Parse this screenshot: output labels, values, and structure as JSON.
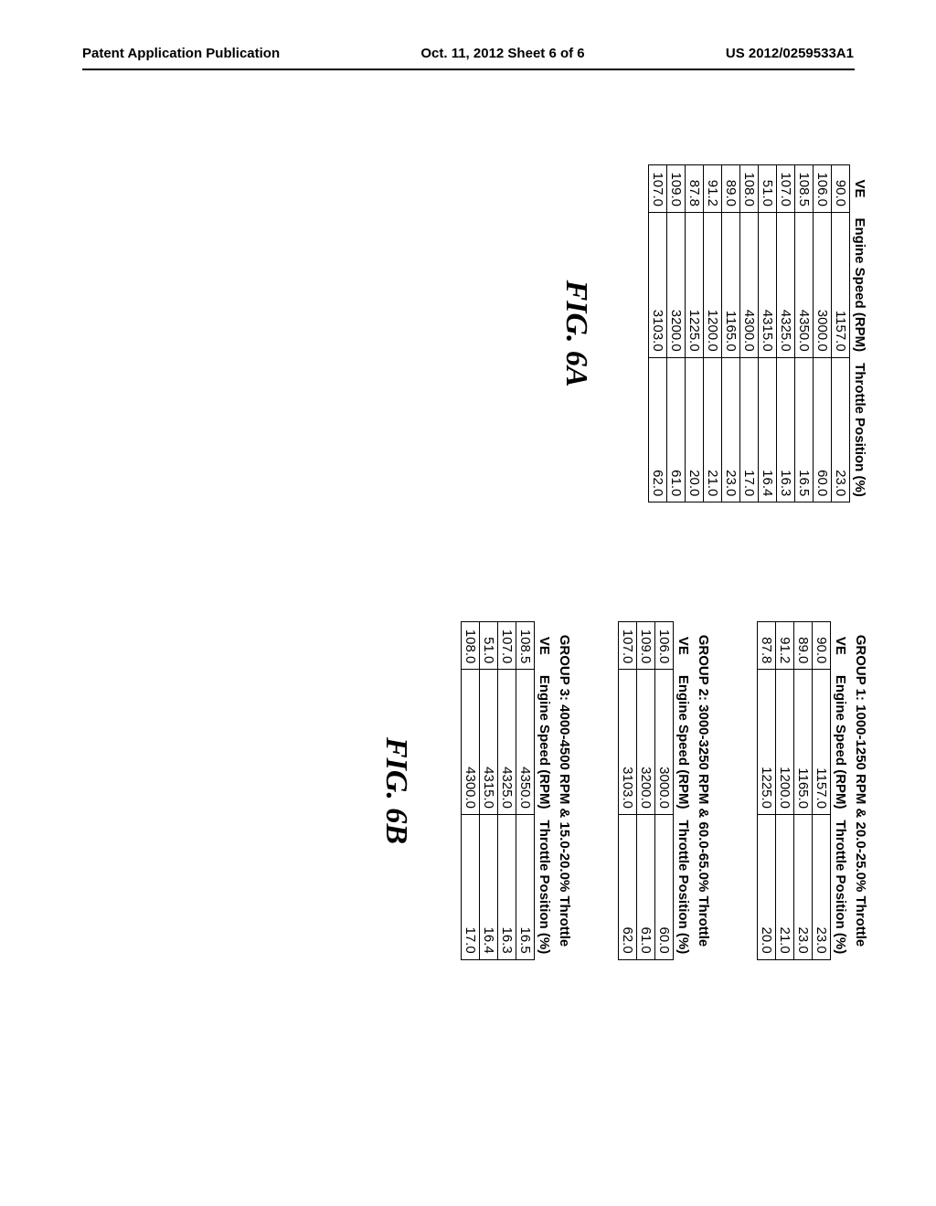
{
  "header": {
    "left": "Patent Application Publication",
    "center": "Oct. 11, 2012  Sheet 6 of 6",
    "right": "US 2012/0259533A1"
  },
  "tableA": {
    "columns": [
      "VE",
      "Engine Speed (RPM)",
      "Throttle Position (%)"
    ],
    "rows": [
      [
        "90.0",
        "1157.0",
        "23.0"
      ],
      [
        "106.0",
        "3000.0",
        "60.0"
      ],
      [
        "108.5",
        "4350.0",
        "16.5"
      ],
      [
        "107.0",
        "4325.0",
        "16.3"
      ],
      [
        "51.0",
        "4315.0",
        "16.4"
      ],
      [
        "108.0",
        "4300.0",
        "17.0"
      ],
      [
        "89.0",
        "1165.0",
        "23.0"
      ],
      [
        "91.2",
        "1200.0",
        "21.0"
      ],
      [
        "87.8",
        "1225.0",
        "20.0"
      ],
      [
        "109.0",
        "3200.0",
        "61.0"
      ],
      [
        "107.0",
        "3103.0",
        "62.0"
      ]
    ],
    "figLabel": "FIG. 6A"
  },
  "groups": [
    {
      "title": "GROUP 1: 1000-1250 RPM & 20.0-25.0% Throttle",
      "columns": [
        "VE",
        "Engine Speed (RPM)",
        "Throttle Position (%)"
      ],
      "rows": [
        [
          "90.0",
          "1157.0",
          "23.0"
        ],
        [
          "89.0",
          "1165.0",
          "23.0"
        ],
        [
          "91.2",
          "1200.0",
          "21.0"
        ],
        [
          "87.8",
          "1225.0",
          "20.0"
        ]
      ]
    },
    {
      "title": "GROUP 2: 3000-3250 RPM & 60.0-65.0% Throttle",
      "columns": [
        "VE",
        "Engine Speed (RPM)",
        "Throttle Position (%)"
      ],
      "rows": [
        [
          "106.0",
          "3000.0",
          "60.0"
        ],
        [
          "109.0",
          "3200.0",
          "61.0"
        ],
        [
          "107.0",
          "3103.0",
          "62.0"
        ]
      ]
    },
    {
      "title": "GROUP 3: 4000-4500 RPM & 15.0-20.0% Throttle",
      "columns": [
        "VE",
        "Engine Speed (RPM)",
        "Throttle Position (%)"
      ],
      "rows": [
        [
          "108.5",
          "4350.0",
          "16.5"
        ],
        [
          "107.0",
          "4325.0",
          "16.3"
        ],
        [
          "51.0",
          "4315.0",
          "16.4"
        ],
        [
          "108.0",
          "4300.0",
          "17.0"
        ]
      ]
    }
  ],
  "figLabelB": "FIG. 6B",
  "style": {
    "page_bg": "#ffffff",
    "text_color": "#000000",
    "border_color": "#000000",
    "header_fontsize": 15,
    "table_fontsize": 15,
    "fig_fontsize": 34
  }
}
